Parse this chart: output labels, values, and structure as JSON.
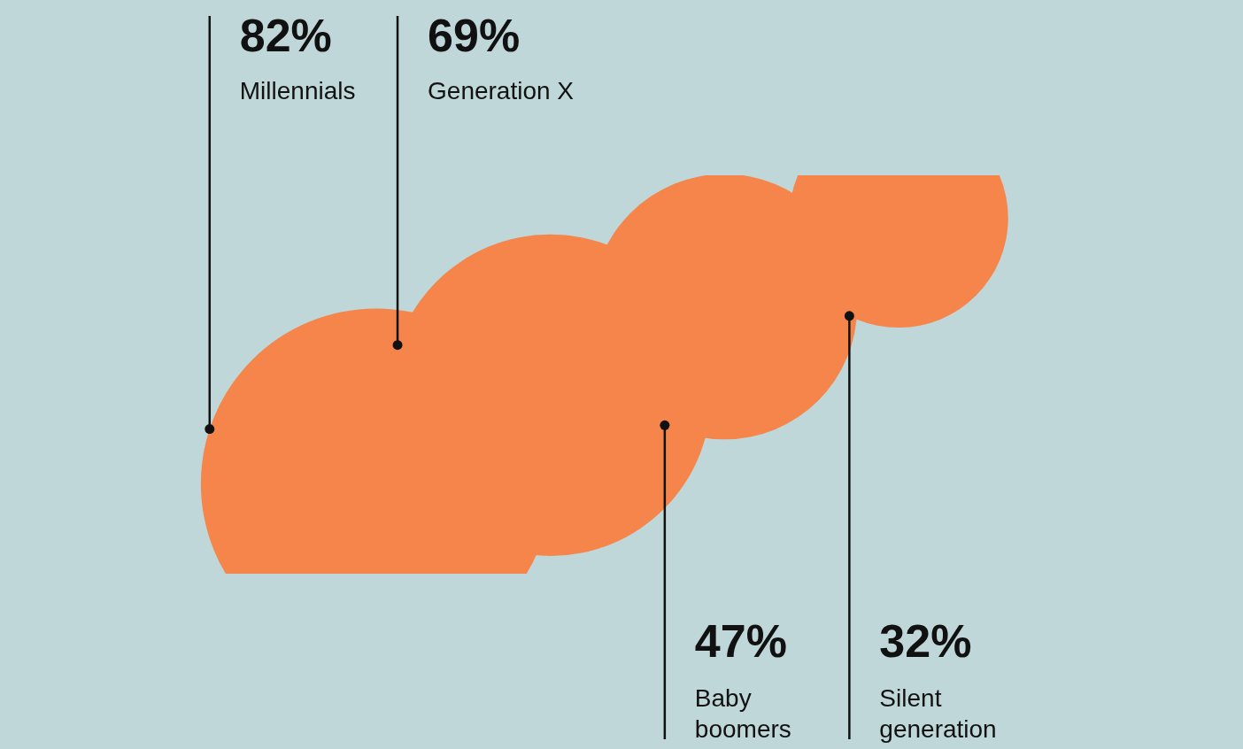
{
  "chart_data": {
    "type": "other",
    "categories": [
      "Millennials",
      "Generation X",
      "Baby boomers",
      "Silent generation"
    ],
    "values": [
      82,
      69,
      47,
      32
    ],
    "value_labels": [
      "82%",
      "69%",
      "47%",
      "32%"
    ],
    "colors": [
      "#f5854a",
      "#f5854a",
      "#f5854a",
      "#f5854a"
    ]
  }
}
